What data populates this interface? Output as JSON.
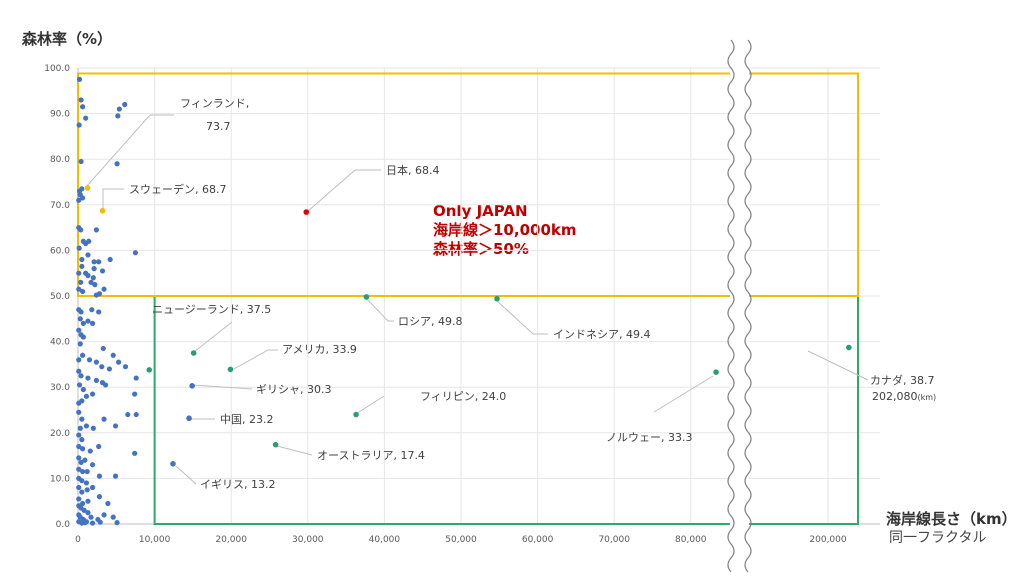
{
  "chart_data": {
    "type": "scatter",
    "ylabel": "森林率（%）",
    "xlabel": "海岸線長さ（km）",
    "xlabel_sub": "同一フラクタル",
    "ylim": [
      0,
      100
    ],
    "x_break": [
      86000,
      195000
    ],
    "y_ticks": [
      "0.0",
      "10.0",
      "20.0",
      "30.0",
      "40.0",
      "50.0",
      "60.0",
      "70.0",
      "80.0",
      "90.0",
      "100.0"
    ],
    "x_ticks": [
      {
        "value": 0,
        "label": "0"
      },
      {
        "value": 10000,
        "label": "10,000"
      },
      {
        "value": 20000,
        "label": "20,000"
      },
      {
        "value": 30000,
        "label": "30,000"
      },
      {
        "value": 40000,
        "label": "40,000"
      },
      {
        "value": 50000,
        "label": "50,000"
      },
      {
        "value": 60000,
        "label": "60,000"
      },
      {
        "value": 70000,
        "label": "70,000"
      },
      {
        "value": 80000,
        "label": "80,000"
      },
      {
        "value": 200000,
        "label": "200,000"
      }
    ],
    "annotation_lines": [
      "Only JAPAN",
      "海岸線＞10,000km",
      "森林率＞50%"
    ],
    "colors": {
      "others": "#4472c4",
      "japan": "#e00000",
      "nordic": "#f0c000",
      "large_coast": "#2a9d78",
      "box_yellow": "#f0c000",
      "box_green": "#2ea86b",
      "note_text": "#c00000"
    },
    "labeled_points": [
      {
        "name": "日本",
        "label": "日本, 68.4",
        "x": 29800,
        "y": 68.4,
        "group": "japan"
      },
      {
        "name": "フィンランド",
        "label": "フィンランド,",
        "label2": "73.7",
        "x": 1250,
        "y": 73.7,
        "group": "nordic"
      },
      {
        "name": "スウェーデン",
        "label": "スウェーデン, 68.7",
        "x": 3200,
        "y": 68.7,
        "group": "nordic"
      },
      {
        "name": "ロシア",
        "label": "ロシア, 49.8",
        "x": 37650,
        "y": 49.8,
        "group": "large_coast"
      },
      {
        "name": "インドネシア",
        "label": "インドネシア, 49.4",
        "x": 54700,
        "y": 49.4,
        "group": "large_coast"
      },
      {
        "name": "ニュージーランド",
        "label": "ニュージーランド, 37.5",
        "x": 15100,
        "y": 37.5,
        "group": "large_coast"
      },
      {
        "name": "アメリカ",
        "label": "アメリカ, 33.9",
        "x": 19900,
        "y": 33.9,
        "group": "large_coast"
      },
      {
        "name": "ギリシャ",
        "label": "ギリシャ, 30.3",
        "x": 14900,
        "y": 30.3,
        "group": "others"
      },
      {
        "name": "中国",
        "label": "中国, 23.2",
        "x": 14500,
        "y": 23.2,
        "group": "others"
      },
      {
        "name": "フィリピン",
        "label": "フィリピン, 24.0",
        "x": 36300,
        "y": 24.0,
        "group": "large_coast"
      },
      {
        "name": "オーストラリア",
        "label": "オーストラリア, 17.4",
        "x": 25800,
        "y": 17.4,
        "group": "large_coast"
      },
      {
        "name": "イギリス",
        "label": "イギリス, 13.2",
        "x": 12400,
        "y": 13.2,
        "group": "others"
      },
      {
        "name": "ノルウェー",
        "label": "ノルウェー, 33.3",
        "x": 83300,
        "y": 33.3,
        "group": "large_coast"
      },
      {
        "name": "カナダ",
        "label": "カナダ, 38.7",
        "label2": "202,080",
        "label2_unit": "(km)",
        "x": 202080,
        "y": 38.7,
        "group": "large_coast"
      },
      {
        "name": "",
        "label": "",
        "x": 9300,
        "y": 33.8,
        "group": "large_coast"
      }
    ],
    "other_points": [
      [
        200,
        97.5
      ],
      [
        400,
        93
      ],
      [
        600,
        91.5
      ],
      [
        1000,
        89
      ],
      [
        150,
        87.5
      ],
      [
        5400,
        91
      ],
      [
        6100,
        92
      ],
      [
        5200,
        89.5
      ],
      [
        400,
        79.5
      ],
      [
        5100,
        79
      ],
      [
        200,
        73
      ],
      [
        500,
        73.5
      ],
      [
        100,
        71
      ],
      [
        300,
        72.2
      ],
      [
        600,
        71.5
      ],
      [
        100,
        65
      ],
      [
        350,
        64.5
      ],
      [
        1400,
        62
      ],
      [
        2400,
        64.5
      ],
      [
        700,
        62
      ],
      [
        1000,
        61.5
      ],
      [
        150,
        60.5
      ],
      [
        500,
        58
      ],
      [
        1300,
        59
      ],
      [
        2700,
        57.5
      ],
      [
        4200,
        58
      ],
      [
        7500,
        59.5
      ],
      [
        2100,
        57.5
      ],
      [
        100,
        55
      ],
      [
        500,
        56.5
      ],
      [
        1000,
        55
      ],
      [
        2100,
        56
      ],
      [
        3200,
        55.5
      ],
      [
        350,
        53
      ],
      [
        1700,
        53
      ],
      [
        2200,
        52.5
      ],
      [
        3400,
        51.5
      ],
      [
        2800,
        50.5
      ],
      [
        100,
        51.5
      ],
      [
        600,
        51
      ],
      [
        1300,
        54.5
      ],
      [
        2000,
        54
      ],
      [
        2400,
        50.2
      ],
      [
        100,
        47
      ],
      [
        400,
        46.5
      ],
      [
        1800,
        47
      ],
      [
        2700,
        46.5
      ],
      [
        300,
        45
      ],
      [
        700,
        44
      ],
      [
        1300,
        44.5
      ],
      [
        1900,
        44
      ],
      [
        100,
        42.5
      ],
      [
        400,
        41.5
      ],
      [
        700,
        41
      ],
      [
        300,
        39.5
      ],
      [
        3300,
        38.5
      ],
      [
        4600,
        37
      ],
      [
        5300,
        35.5
      ],
      [
        6200,
        34.5
      ],
      [
        100,
        36
      ],
      [
        600,
        37
      ],
      [
        1500,
        36
      ],
      [
        2400,
        35.5
      ],
      [
        3100,
        34.5
      ],
      [
        4100,
        34
      ],
      [
        7600,
        32
      ],
      [
        100,
        33.5
      ],
      [
        400,
        32.5
      ],
      [
        1300,
        32
      ],
      [
        2400,
        31.5
      ],
      [
        3200,
        31
      ],
      [
        3600,
        30.5
      ],
      [
        200,
        30.5
      ],
      [
        700,
        29.5
      ],
      [
        1100,
        28
      ],
      [
        1900,
        28.5
      ],
      [
        7400,
        28.5
      ],
      [
        6500,
        24
      ],
      [
        7600,
        24
      ],
      [
        4900,
        21.5
      ],
      [
        3400,
        23
      ],
      [
        100,
        26.5
      ],
      [
        500,
        27
      ],
      [
        100,
        24.5
      ],
      [
        500,
        23
      ],
      [
        300,
        21
      ],
      [
        1100,
        21.5
      ],
      [
        2000,
        21
      ],
      [
        100,
        19.5
      ],
      [
        500,
        18.5
      ],
      [
        100,
        17
      ],
      [
        600,
        16.5
      ],
      [
        1600,
        16
      ],
      [
        2700,
        17
      ],
      [
        7400,
        15.5
      ],
      [
        100,
        14.5
      ],
      [
        400,
        13.5
      ],
      [
        900,
        14
      ],
      [
        1900,
        13
      ],
      [
        100,
        12
      ],
      [
        600,
        11.5
      ],
      [
        1200,
        11.5
      ],
      [
        2800,
        10.5
      ],
      [
        4900,
        10.5
      ],
      [
        100,
        10
      ],
      [
        500,
        9.5
      ],
      [
        1100,
        9
      ],
      [
        100,
        8
      ],
      [
        500,
        7
      ],
      [
        1200,
        7.5
      ],
      [
        1900,
        8
      ],
      [
        2800,
        6
      ],
      [
        100,
        5.5
      ],
      [
        600,
        4.5
      ],
      [
        1300,
        5
      ],
      [
        100,
        4
      ],
      [
        400,
        3.5
      ],
      [
        800,
        3
      ],
      [
        1300,
        2.5
      ],
      [
        100,
        2
      ],
      [
        300,
        1.5
      ],
      [
        700,
        1
      ],
      [
        1100,
        0.5
      ],
      [
        1700,
        1.5
      ],
      [
        2600,
        1
      ],
      [
        3400,
        2
      ],
      [
        100,
        0.5
      ],
      [
        500,
        0.2
      ],
      [
        900,
        0.3
      ],
      [
        1900,
        0.2
      ],
      [
        2900,
        0.4
      ],
      [
        5100,
        0.3
      ],
      [
        3900,
        4.5
      ],
      [
        4600,
        1.5
      ]
    ],
    "green_box": {
      "x_from": 10000,
      "x_to": 203000,
      "y_from": 0,
      "y_to": 50
    },
    "yellow_box": {
      "x_from": 0,
      "x_to": 203000,
      "y_from": 50,
      "y_to": 98.8
    }
  }
}
